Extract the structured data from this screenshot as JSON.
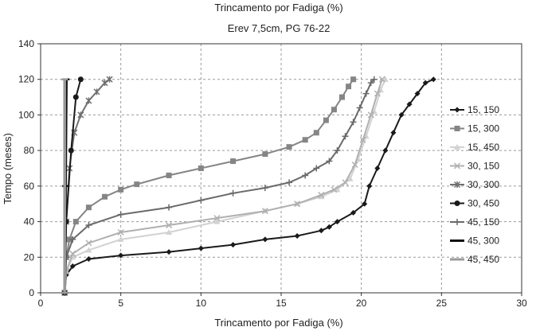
{
  "chart_data": {
    "type": "line",
    "title": "Trincamento por Fadiga (%)",
    "subtitle": "Erev 7,5cm, PG 76-22",
    "xlabel": "Trincamento por Fadiga (%)",
    "ylabel": "Tempo (meses)",
    "xlim": [
      0,
      30
    ],
    "ylim": [
      0,
      140
    ],
    "xticks": [
      0,
      5,
      10,
      15,
      20,
      25,
      30
    ],
    "yticks": [
      0,
      20,
      40,
      60,
      80,
      100,
      120,
      140
    ],
    "grid": true,
    "legend_position": "right",
    "series": [
      {
        "name": "15, 150",
        "color": "#1a1a1a",
        "marker": "diamond",
        "x": [
          1.5,
          1.6,
          2.0,
          3.0,
          5.0,
          8.0,
          10.0,
          12.0,
          14.0,
          16.0,
          17.5,
          18.0,
          18.5,
          19.5,
          20.2,
          20.5,
          21.0,
          21.5,
          22.0,
          22.5,
          23.0,
          23.5,
          24.0,
          24.5
        ],
        "y": [
          0,
          10,
          15,
          19,
          21,
          23,
          25,
          27,
          30,
          32,
          35,
          37,
          40,
          45,
          50,
          60,
          70,
          80,
          90,
          100,
          106,
          112,
          118,
          120
        ]
      },
      {
        "name": "15, 300",
        "color": "#858585",
        "marker": "square",
        "x": [
          1.5,
          1.6,
          1.8,
          2.2,
          3.0,
          4.0,
          5.0,
          6.0,
          8.0,
          10.0,
          12.0,
          14.0,
          15.5,
          16.5,
          17.2,
          17.8,
          18.3,
          18.8,
          19.2,
          19.5
        ],
        "y": [
          0,
          20,
          30,
          40,
          48,
          54,
          58,
          61,
          66,
          70,
          74,
          78,
          82,
          86,
          90,
          97,
          103,
          110,
          116,
          120
        ]
      },
      {
        "name": "15, 450",
        "color": "#d2d2d2",
        "marker": "triangle",
        "x": [
          1.5,
          1.6,
          2.0,
          3.0,
          5.0,
          8.0,
          11.0,
          14.0,
          16.0,
          17.5,
          18.5,
          19.3,
          19.8,
          20.3,
          20.8,
          21.2,
          21.5
        ],
        "y": [
          0,
          12,
          20,
          24,
          30,
          34,
          40,
          46,
          50,
          54,
          58,
          64,
          75,
          88,
          102,
          114,
          120
        ]
      },
      {
        "name": "30, 150",
        "color": "#b0b0b0",
        "marker": "x",
        "x": [
          1.5,
          1.6,
          2.0,
          3.0,
          5.0,
          8.0,
          11.0,
          14.0,
          16.0,
          17.5,
          18.3,
          19.0,
          19.6,
          20.1,
          20.6,
          21.0,
          21.3
        ],
        "y": [
          0,
          12,
          22,
          28,
          34,
          38,
          42,
          46,
          50,
          55,
          58,
          62,
          72,
          86,
          100,
          112,
          120
        ]
      },
      {
        "name": "30, 300",
        "color": "#707070",
        "marker": "asterisk",
        "x": [
          1.5,
          1.6,
          1.8,
          2.1,
          2.5,
          3.0,
          3.5,
          4.0,
          4.3
        ],
        "y": [
          0,
          40,
          70,
          90,
          100,
          108,
          113,
          118,
          120
        ]
      },
      {
        "name": "30, 450",
        "color": "#1a1a1a",
        "marker": "circle",
        "x": [
          1.5,
          1.6,
          1.9,
          2.2,
          2.5
        ],
        "y": [
          0,
          40,
          80,
          110,
          120
        ]
      },
      {
        "name": "45, 150",
        "color": "#6a6a6a",
        "marker": "plus",
        "x": [
          1.5,
          1.6,
          2.0,
          3.0,
          5.0,
          8.0,
          10.0,
          12.0,
          14.0,
          15.5,
          16.5,
          17.2,
          18.0,
          18.5,
          19.0,
          19.5,
          19.9,
          20.3,
          20.6,
          20.8
        ],
        "y": [
          0,
          20,
          30,
          38,
          44,
          48,
          52,
          56,
          59,
          62,
          66,
          70,
          74,
          80,
          88,
          96,
          104,
          112,
          118,
          120
        ]
      },
      {
        "name": "45, 300",
        "color": "#111111",
        "marker": "dash",
        "x": [
          1.5,
          1.55,
          1.6
        ],
        "y": [
          0,
          60,
          120
        ]
      },
      {
        "name": "45, 450",
        "color": "#9a9a9a",
        "marker": "dash",
        "x": [
          1.5,
          1.5
        ],
        "y": [
          0,
          120
        ]
      }
    ]
  }
}
